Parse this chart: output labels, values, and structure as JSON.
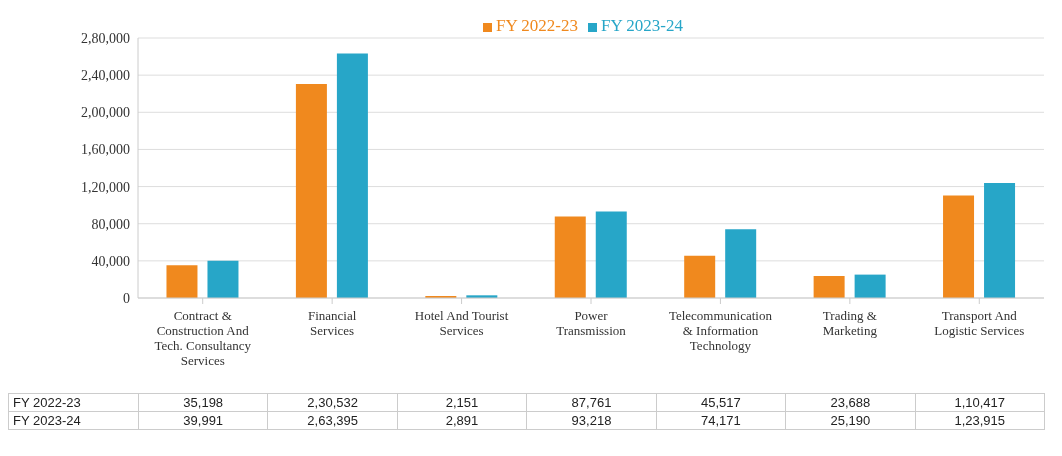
{
  "chart_data": {
    "type": "bar",
    "categories": [
      "Contract & Construction And Tech. Consultancy Services",
      "Financial Services",
      "Hotel And Tourist Services",
      "Power Transmission",
      "Telecommunication & Information Technology",
      "Trading & Marketing",
      "Transport And Logistic Services"
    ],
    "series": [
      {
        "name": "FY 2022-23",
        "color": "#f0891e",
        "values": [
          35198,
          230532,
          2151,
          87761,
          45517,
          23688,
          110417
        ],
        "value_labels": [
          "35,198",
          "2,30,532",
          "2,151",
          "87,761",
          "45,517",
          "23,688",
          "1,10,417"
        ]
      },
      {
        "name": "FY 2023-24",
        "color": "#27a6c8",
        "values": [
          39991,
          263395,
          2891,
          93218,
          74171,
          25190,
          123915
        ],
        "value_labels": [
          "39,991",
          "2,63,395",
          "2,891",
          "93,218",
          "74,171",
          "25,190",
          "1,23,915"
        ]
      }
    ],
    "ylim": [
      0,
      280000
    ],
    "yticks": [
      0,
      {
        "value": 40000,
        "label": "40,000"
      },
      {
        "value": 80000,
        "label": "80,000"
      },
      {
        "value": 120000,
        "label": "1,20,000"
      },
      {
        "value": 160000,
        "label": "1,60,000"
      },
      {
        "value": 200000,
        "label": "2,00,000"
      },
      {
        "value": 240000,
        "label": "2,40,000"
      },
      {
        "value": 280000,
        "label": "2,80,000"
      }
    ],
    "grid": "y",
    "legend": "top"
  }
}
